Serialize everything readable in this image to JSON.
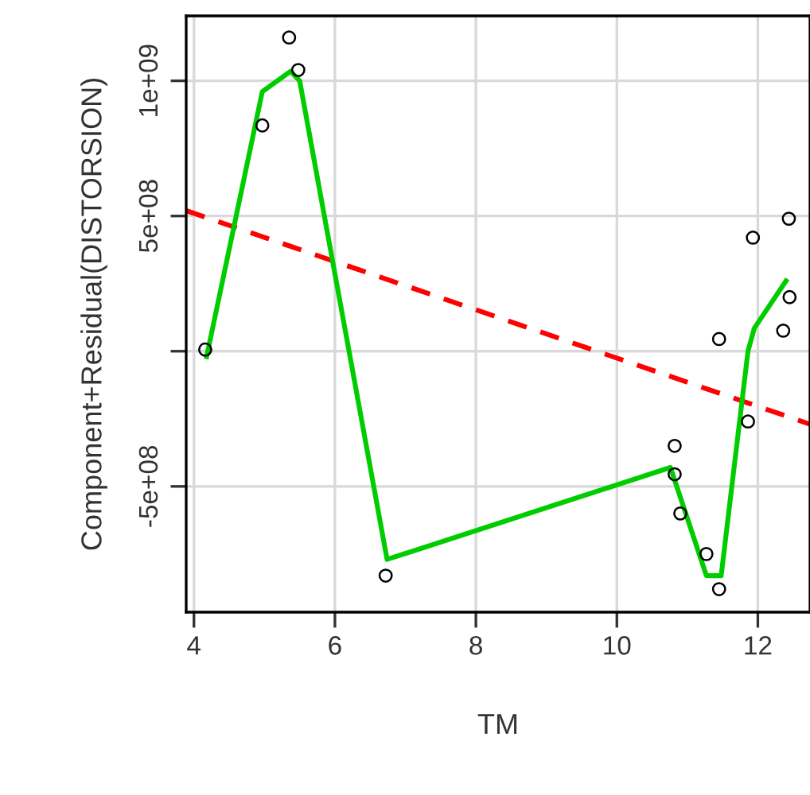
{
  "chart_data": {
    "type": "scatter",
    "xlabel": "TM",
    "ylabel": "Component+Residual(DISTORSION)",
    "xlim": [
      3.89,
      12.74
    ],
    "ylim": [
      -965000000,
      1240000000
    ],
    "xticks": [
      4,
      6,
      8,
      10,
      12
    ],
    "yticks": [
      {
        "value": -500000000,
        "label": "-5e+08"
      },
      {
        "value": 0,
        "label": null
      },
      {
        "value": 500000000,
        "label": "5e+08"
      },
      {
        "value": 1000000000,
        "label": "1e+09"
      }
    ],
    "grid": true,
    "legend": false,
    "series": [
      {
        "marker": "circle",
        "color": "#000000",
        "x": [
          4.16,
          4.97,
          5.35,
          5.48,
          6.72,
          10.82,
          10.82,
          10.9,
          11.27,
          11.45,
          11.45,
          11.86,
          11.93,
          12.36,
          12.44,
          12.45
        ],
        "values": [
          6000000,
          835000000,
          1160000000,
          1040000000,
          -830000000,
          -350000000,
          -455000000,
          -600000000,
          -750000000,
          -880000000,
          45000000,
          -260000000,
          420000000,
          76000000,
          490000000,
          200000000
        ]
      },
      {
        "type": "line",
        "line_style": "dashed",
        "color": "#ff0000",
        "x": [
          3.89,
          12.74
        ],
        "values": [
          520000000,
          -270000000
        ]
      },
      {
        "type": "line",
        "line_style": "solid",
        "color": "#00cd00",
        "x": [
          4.18,
          4.97,
          5.37,
          5.5,
          6.74,
          10.76,
          11.27,
          11.48,
          11.86,
          11.95,
          12.4
        ],
        "values": [
          -20000000,
          960000000,
          1035000000,
          1000000000,
          -770000000,
          -430000000,
          -830000000,
          -830000000,
          0,
          85000000,
          260000000
        ]
      }
    ]
  }
}
